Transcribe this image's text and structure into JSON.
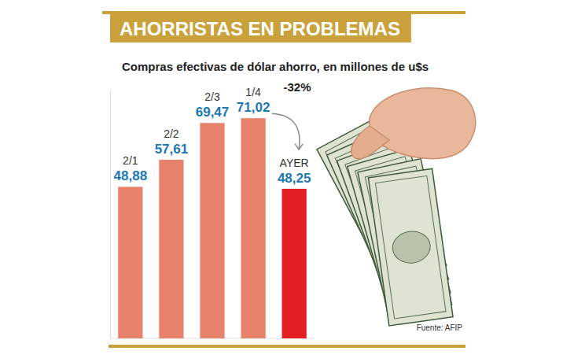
{
  "chart_data": {
    "type": "bar",
    "title": "AHORRISTAS EN PROBLEMAS",
    "subtitle": "Compras efectivas de dólar ahorro, en millones de u$s",
    "categories": [
      "2/1",
      "2/2",
      "2/3",
      "1/4",
      "AYER"
    ],
    "values": [
      48.88,
      57.61,
      69.47,
      71.02,
      48.25
    ],
    "value_labels": [
      "48,88",
      "57,61",
      "69,47",
      "71,02",
      "48,25"
    ],
    "colors": [
      "#e8826c",
      "#e8826c",
      "#e8826c",
      "#e8826c",
      "#e31e24"
    ],
    "ylim": [
      0,
      80
    ],
    "yticks": [
      0
    ],
    "tick_labels": false,
    "data_labels": true,
    "grid": false,
    "annotation": "-32%",
    "source": "Fuente: AFIP"
  }
}
